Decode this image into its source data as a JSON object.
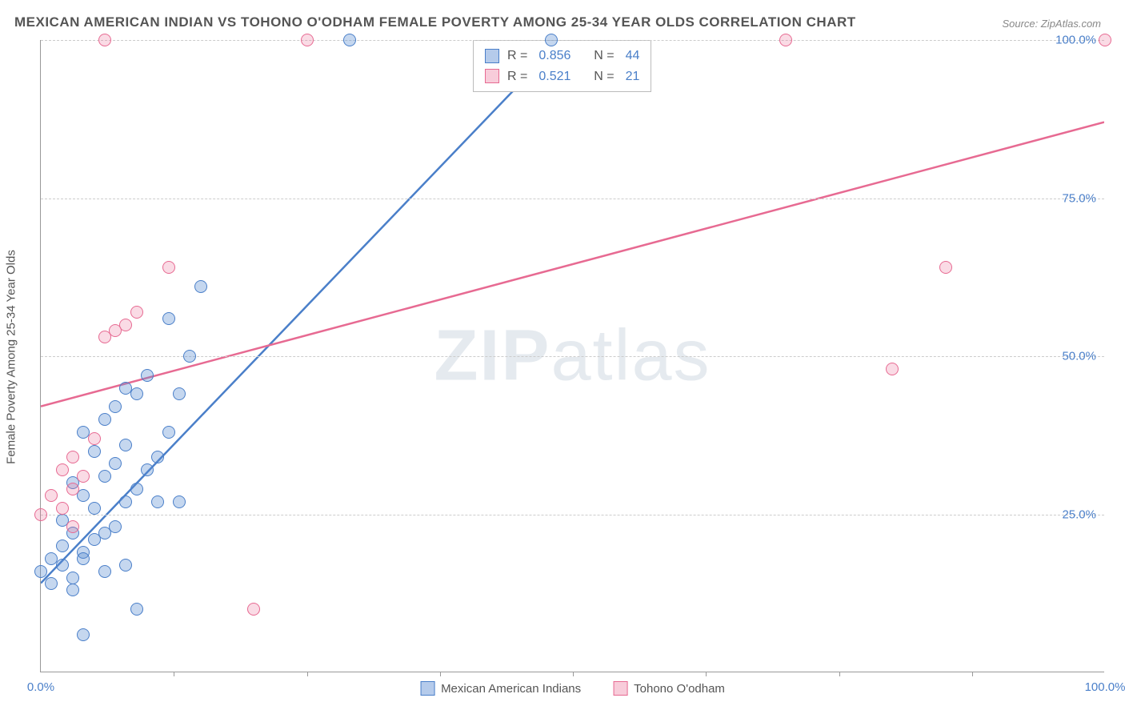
{
  "title": "MEXICAN AMERICAN INDIAN VS TOHONO O'ODHAM FEMALE POVERTY AMONG 25-34 YEAR OLDS CORRELATION CHART",
  "source": "Source: ZipAtlas.com",
  "y_axis_label": "Female Poverty Among 25-34 Year Olds",
  "watermark_bold": "ZIP",
  "watermark_light": "atlas",
  "chart": {
    "type": "scatter",
    "xlim": [
      0,
      100
    ],
    "ylim": [
      0,
      100
    ],
    "x_ticks": [
      0,
      50,
      100
    ],
    "x_tick_labels": [
      "0.0%",
      "",
      "100.0%"
    ],
    "y_ticks": [
      25,
      50,
      75,
      100
    ],
    "y_tick_labels": [
      "25.0%",
      "50.0%",
      "75.0%",
      "100.0%"
    ],
    "x_tick_marks": [
      12.5,
      25,
      37.5,
      50,
      62.5,
      75,
      87.5
    ],
    "grid_color": "#cccccc",
    "axis_color": "#999999",
    "background_color": "#ffffff",
    "marker_size": 16,
    "series": [
      {
        "name": "Mexican American Indians",
        "color": "#4a7fc9",
        "fill": "rgba(90,140,210,0.35)",
        "R": "0.856",
        "N": "44",
        "trend": {
          "x1": 0,
          "y1": 14,
          "x2": 49,
          "y2": 100
        },
        "points": [
          [
            0,
            16
          ],
          [
            1,
            18
          ],
          [
            2,
            17
          ],
          [
            1,
            14
          ],
          [
            3,
            15
          ],
          [
            2,
            20
          ],
          [
            4,
            19
          ],
          [
            3,
            22
          ],
          [
            5,
            21
          ],
          [
            4,
            18
          ],
          [
            2,
            24
          ],
          [
            6,
            22
          ],
          [
            5,
            26
          ],
          [
            7,
            23
          ],
          [
            4,
            28
          ],
          [
            8,
            27
          ],
          [
            3,
            30
          ],
          [
            6,
            31
          ],
          [
            9,
            29
          ],
          [
            7,
            33
          ],
          [
            5,
            35
          ],
          [
            10,
            32
          ],
          [
            8,
            36
          ],
          [
            4,
            38
          ],
          [
            11,
            34
          ],
          [
            6,
            40
          ],
          [
            12,
            38
          ],
          [
            7,
            42
          ],
          [
            9,
            44
          ],
          [
            8,
            45
          ],
          [
            13,
            44
          ],
          [
            10,
            47
          ],
          [
            14,
            50
          ],
          [
            12,
            56
          ],
          [
            15,
            61
          ],
          [
            3,
            13
          ],
          [
            11,
            27
          ],
          [
            13,
            27
          ],
          [
            6,
            16
          ],
          [
            8,
            17
          ],
          [
            9,
            10
          ],
          [
            4,
            6
          ],
          [
            29,
            100
          ],
          [
            48,
            100
          ]
        ]
      },
      {
        "name": "Tohono O'odham",
        "color": "#e76a92",
        "fill": "rgba(235,110,150,0.25)",
        "R": "0.521",
        "N": "21",
        "trend": {
          "x1": 0,
          "y1": 42,
          "x2": 100,
          "y2": 87
        },
        "points": [
          [
            0,
            25
          ],
          [
            2,
            26
          ],
          [
            1,
            28
          ],
          [
            3,
            29
          ],
          [
            2,
            32
          ],
          [
            4,
            31
          ],
          [
            3,
            34
          ],
          [
            5,
            37
          ],
          [
            6,
            53
          ],
          [
            7,
            54
          ],
          [
            8,
            55
          ],
          [
            9,
            57
          ],
          [
            12,
            64
          ],
          [
            20,
            10
          ],
          [
            80,
            48
          ],
          [
            85,
            64
          ],
          [
            6,
            100
          ],
          [
            25,
            100
          ],
          [
            70,
            100
          ],
          [
            100,
            100
          ],
          [
            3,
            23
          ]
        ]
      }
    ]
  },
  "labels": {
    "R_prefix": "R =",
    "N_prefix": "N ="
  }
}
